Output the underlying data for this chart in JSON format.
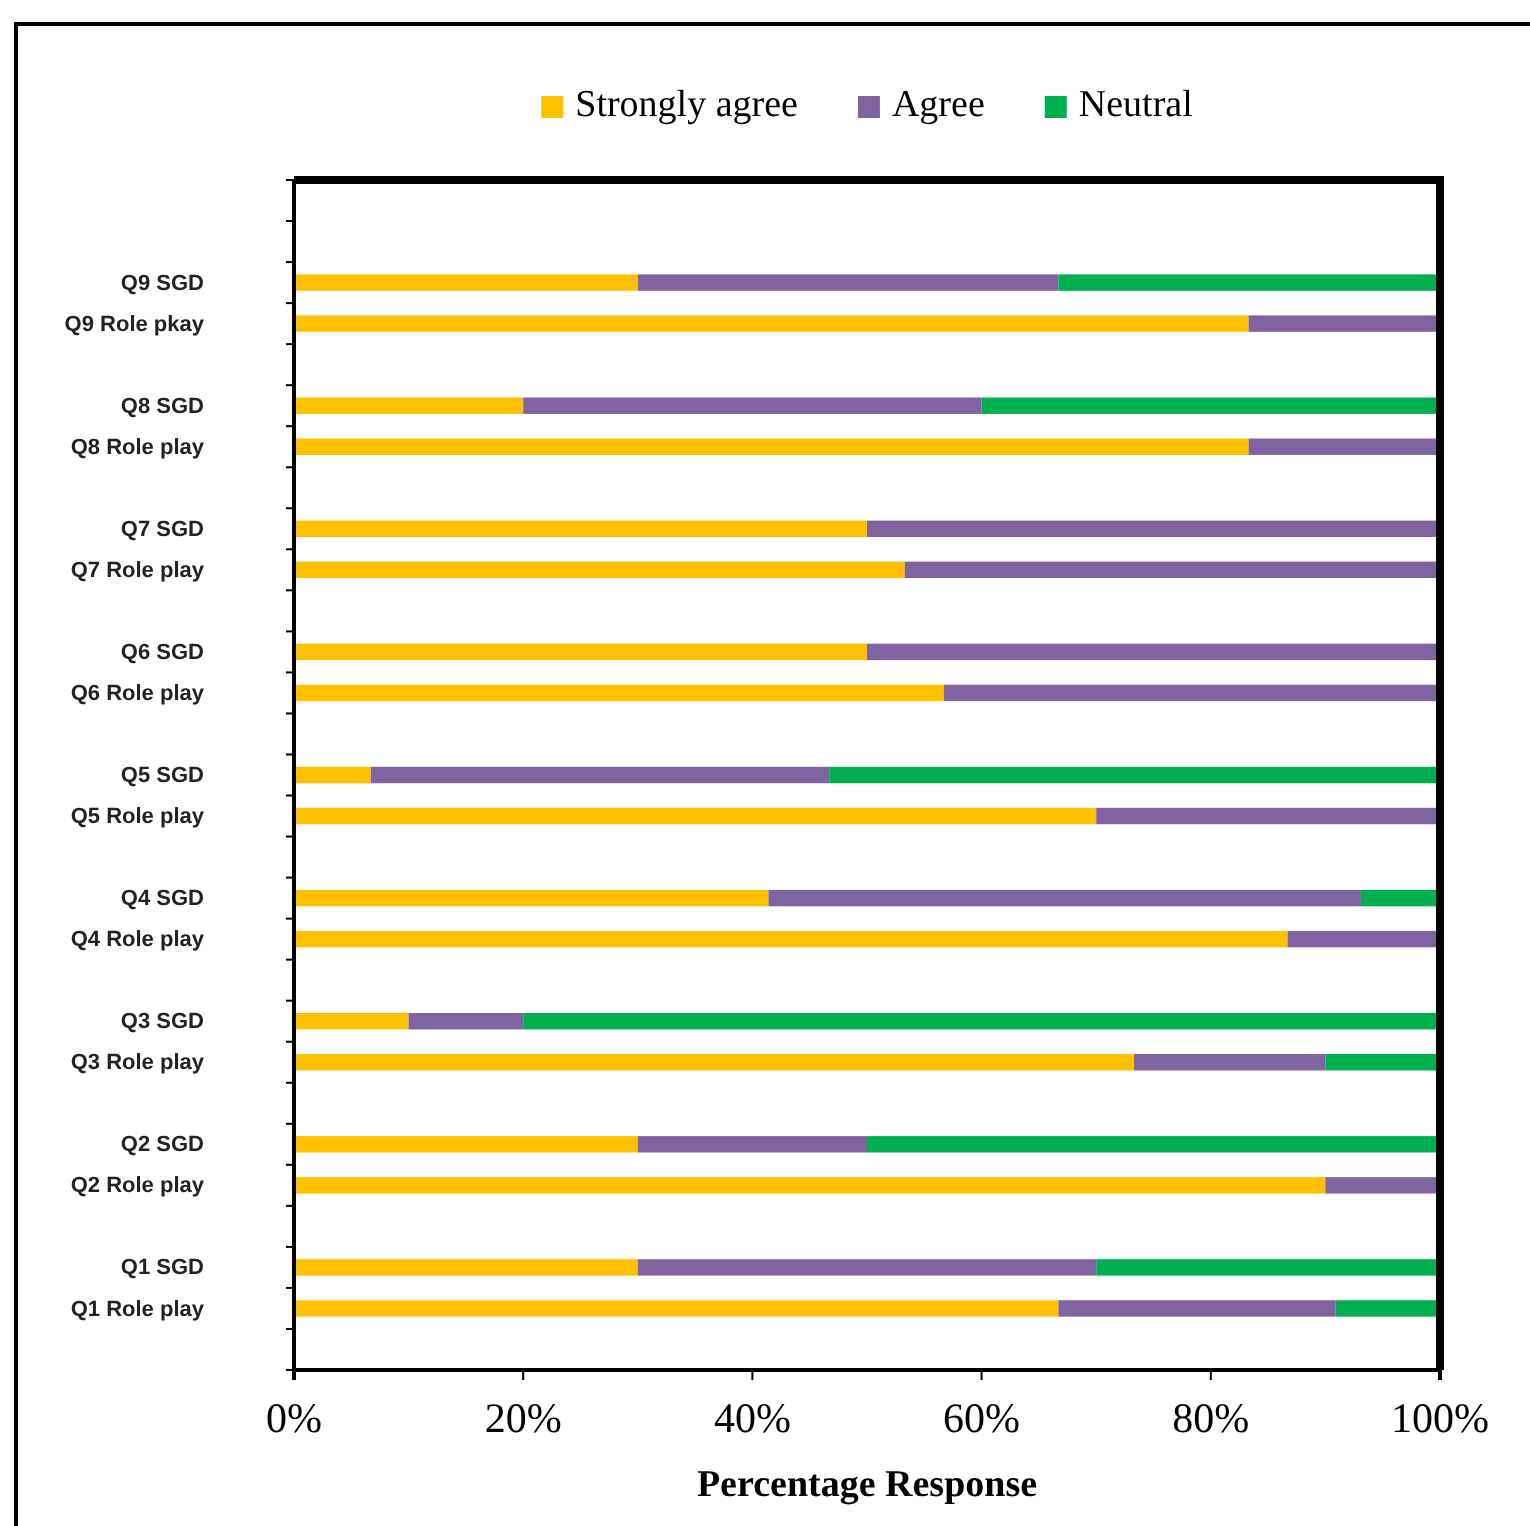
{
  "chart_data": {
    "type": "bar",
    "orientation": "horizontal",
    "stacked": true,
    "xlabel": "Percentage Response",
    "legend": "top",
    "grid": false,
    "categories": [
      null,
      null,
      "Q9 SGD",
      "Q9 Role pkay",
      null,
      "Q8 SGD",
      "Q8 Role play",
      null,
      "Q7 SGD",
      "Q7 Role play",
      null,
      "Q6 SGD",
      "Q6 Role play",
      null,
      "Q5 SGD",
      "Q5 Role play",
      null,
      "Q4 SGD",
      "Q4 Role play",
      null,
      "Q3 SGD",
      "Q3 Role play",
      null,
      "Q2 SGD",
      "Q2 Role play",
      null,
      "Q1 SGD",
      "Q1 Role play",
      null
    ],
    "xlim": [
      0,
      100
    ],
    "xticks": [
      {
        "value": 0,
        "label": "0%"
      },
      {
        "value": 20,
        "label": "20%"
      },
      {
        "value": 40,
        "label": "40%"
      },
      {
        "value": 60,
        "label": "60%"
      },
      {
        "value": 80,
        "label": "80%"
      },
      {
        "value": 100,
        "label": "100%"
      }
    ],
    "series": [
      {
        "name": "Strongly agree",
        "color": "#ffc000",
        "values": [
          null,
          null,
          30,
          83.3,
          null,
          20,
          83.3,
          null,
          50,
          53.3,
          null,
          50,
          56.7,
          null,
          6.7,
          70,
          null,
          41.4,
          86.7,
          null,
          10,
          73.3,
          null,
          30,
          90,
          null,
          30,
          66.7,
          null
        ]
      },
      {
        "name": "Agree",
        "color": "#8064a2",
        "values": [
          null,
          null,
          36.7,
          16.7,
          null,
          40,
          16.7,
          null,
          50,
          46.7,
          null,
          50,
          43.3,
          null,
          40,
          30,
          null,
          51.7,
          13.3,
          null,
          10,
          16.7,
          null,
          20,
          10,
          null,
          40,
          24.2,
          null
        ]
      },
      {
        "name": "Neutral",
        "color": "#00b050",
        "values": [
          null,
          null,
          33.3,
          null,
          null,
          40,
          null,
          null,
          null,
          null,
          null,
          null,
          null,
          null,
          53.3,
          null,
          null,
          6.9,
          null,
          null,
          80,
          10,
          null,
          50,
          null,
          null,
          30,
          9.1,
          null
        ]
      }
    ]
  }
}
